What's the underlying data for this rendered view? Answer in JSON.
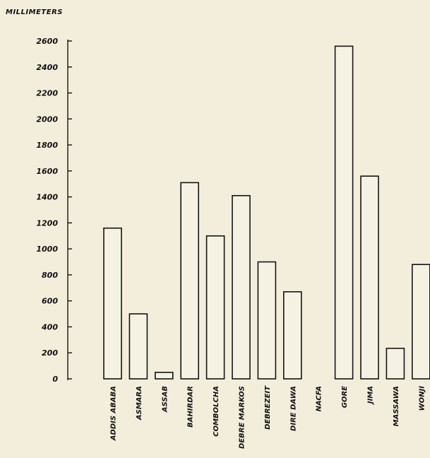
{
  "chart_data": {
    "type": "bar",
    "title": "MILLIMETERS",
    "xlabel": "",
    "ylabel": "MILLIMETERS",
    "ylim": [
      0,
      2600
    ],
    "yticks": [
      "2600",
      "2400",
      "2200",
      "2000",
      "1800",
      "1600",
      "1400",
      "1200",
      "1000",
      "800",
      "600",
      "400",
      "200",
      "0"
    ],
    "categories": [
      "ADDIS ABABA",
      "ASMARA",
      "ASSAB",
      "BAHIRDAR",
      "COMBOLCHA",
      "DEBRE MARKOS",
      "DEBREZEIT",
      "DIRE DAWA",
      "NACFA",
      "GORE",
      "JIMA",
      "MASSAWA",
      "WONJI"
    ],
    "values": [
      1160,
      500,
      50,
      1510,
      1100,
      1410,
      900,
      670,
      0,
      2560,
      1560,
      235,
      880
    ],
    "grid": false,
    "legend": "none"
  }
}
